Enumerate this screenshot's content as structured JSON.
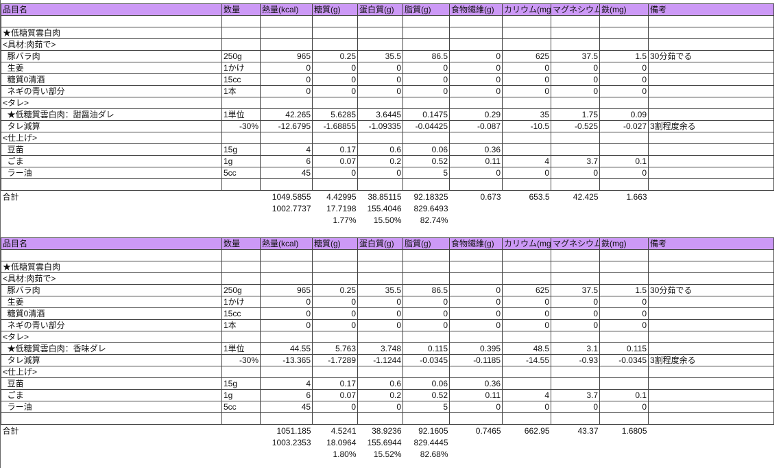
{
  "tables": [
    {
      "header": [
        "品目名",
        "数量",
        "熱量(kcal)",
        "糖質(g)",
        "蛋白質(g)",
        "脂質(g)",
        "食物繊維(g)",
        "カリウム(mg",
        "マグネシウム",
        "鉄(mg)",
        "備考"
      ],
      "rows": [
        [
          null,
          null,
          null,
          null,
          null,
          null,
          null,
          null,
          null,
          null,
          null
        ],
        [
          "★低糖質雲白肉",
          null,
          null,
          null,
          null,
          null,
          null,
          null,
          null,
          null,
          null
        ],
        [
          "<具材:肉茹で>",
          null,
          null,
          null,
          null,
          null,
          null,
          null,
          null,
          null,
          null
        ],
        [
          "  豚バラ肉",
          "250g",
          "965",
          "0.25",
          "35.5",
          "86.5",
          "0",
          "625",
          "37.5",
          "1.5",
          "30分茹でる"
        ],
        [
          "  生姜",
          "1かけ",
          "0",
          "0",
          "0",
          "0",
          "0",
          "0",
          "0",
          "0",
          null
        ],
        [
          "  糖質0清酒",
          "15cc",
          "0",
          "0",
          "0",
          "0",
          "0",
          "0",
          "0",
          "0",
          null
        ],
        [
          "  ネギの青い部分",
          "1本",
          "0",
          "0",
          "0",
          "0",
          "0",
          "0",
          "0",
          "0",
          null
        ],
        [
          "<タレ>",
          null,
          null,
          null,
          null,
          null,
          null,
          null,
          null,
          null,
          null
        ],
        [
          "  ★低糖質雲白肉：甜醤油ダレ",
          "1単位",
          "42.265",
          "5.6285",
          "3.6445",
          "0.1475",
          "0.29",
          "35",
          "1.75",
          "0.09",
          null
        ],
        [
          "  タレ減算",
          "-30%",
          "-12.6795",
          "-1.68855",
          "-1.09335",
          "-0.04425",
          "-0.087",
          "-10.5",
          "-0.525",
          "-0.027",
          "3割程度余る"
        ],
        [
          "<仕上げ>",
          null,
          null,
          null,
          null,
          null,
          null,
          null,
          null,
          null,
          null
        ],
        [
          "  豆苗",
          "15g",
          "4",
          "0.17",
          "0.6",
          "0.06",
          "0.36",
          null,
          null,
          null,
          null
        ],
        [
          "  ごま",
          "1g",
          "6",
          "0.07",
          "0.2",
          "0.52",
          "0.11",
          "4",
          "3.7",
          "0.1",
          null
        ],
        [
          "  ラー油",
          "5cc",
          "45",
          "0",
          "0",
          "5",
          "0",
          "0",
          "0",
          "0",
          null
        ],
        [
          null,
          null,
          null,
          null,
          null,
          null,
          null,
          null,
          null,
          null,
          null
        ]
      ],
      "summary": [
        [
          "合計",
          null,
          "1049.5855",
          "4.42995",
          "38.85115",
          "92.18325",
          "0.673",
          "653.5",
          "42.425",
          "1.663",
          null
        ],
        [
          null,
          null,
          "1002.7737",
          "17.7198",
          "155.4046",
          "829.6493",
          null,
          null,
          null,
          null,
          null
        ],
        [
          null,
          null,
          null,
          "1.77%",
          "15.50%",
          "82.74%",
          null,
          null,
          null,
          null,
          null
        ]
      ]
    },
    {
      "header": [
        "品目名",
        "数量",
        "熱量(kcal)",
        "糖質(g)",
        "蛋白質(g)",
        "脂質(g)",
        "食物繊維(g)",
        "カリウム(mg",
        "マグネシウム",
        "鉄(mg)",
        "備考"
      ],
      "rows": [
        [
          null,
          null,
          null,
          null,
          null,
          null,
          null,
          null,
          null,
          null,
          null
        ],
        [
          "★低糖質雲白肉",
          null,
          null,
          null,
          null,
          null,
          null,
          null,
          null,
          null,
          null
        ],
        [
          "<具材:肉茹で>",
          null,
          null,
          null,
          null,
          null,
          null,
          null,
          null,
          null,
          null
        ],
        [
          "  豚バラ肉",
          "250g",
          "965",
          "0.25",
          "35.5",
          "86.5",
          "0",
          "625",
          "37.5",
          "1.5",
          "30分茹でる"
        ],
        [
          "  生姜",
          "1かけ",
          "0",
          "0",
          "0",
          "0",
          "0",
          "0",
          "0",
          "0",
          null
        ],
        [
          "  糖質0清酒",
          "15cc",
          "0",
          "0",
          "0",
          "0",
          "0",
          "0",
          "0",
          "0",
          null
        ],
        [
          "  ネギの青い部分",
          "1本",
          "0",
          "0",
          "0",
          "0",
          "0",
          "0",
          "0",
          "0",
          null
        ],
        [
          "<タレ>",
          null,
          null,
          null,
          null,
          null,
          null,
          null,
          null,
          null,
          null
        ],
        [
          "  ★低糖質雲白肉：香味ダレ",
          "1単位",
          "44.55",
          "5.763",
          "3.748",
          "0.115",
          "0.395",
          "48.5",
          "3.1",
          "0.115",
          null
        ],
        [
          "  タレ減算",
          "-30%",
          "-13.365",
          "-1.7289",
          "-1.1244",
          "-0.0345",
          "-0.1185",
          "-14.55",
          "-0.93",
          "-0.0345",
          "3割程度余る"
        ],
        [
          "<仕上げ>",
          null,
          null,
          null,
          null,
          null,
          null,
          null,
          null,
          null,
          null
        ],
        [
          "  豆苗",
          "15g",
          "4",
          "0.17",
          "0.6",
          "0.06",
          "0.36",
          null,
          null,
          null,
          null
        ],
        [
          "  ごま",
          "1g",
          "6",
          "0.07",
          "0.2",
          "0.52",
          "0.11",
          "4",
          "3.7",
          "0.1",
          null
        ],
        [
          "  ラー油",
          "5cc",
          "45",
          "0",
          "0",
          "5",
          "0",
          "0",
          "0",
          "0",
          null
        ],
        [
          null,
          null,
          null,
          null,
          null,
          null,
          null,
          null,
          null,
          null,
          null
        ]
      ],
      "summary": [
        [
          "合計",
          null,
          "1051.185",
          "4.5241",
          "38.9236",
          "92.1605",
          "0.7465",
          "662.95",
          "43.37",
          "1.6805",
          null
        ],
        [
          null,
          null,
          "1003.2353",
          "18.0964",
          "155.6944",
          "829.4445",
          null,
          null,
          null,
          null,
          null
        ],
        [
          null,
          null,
          null,
          "1.80%",
          "15.52%",
          "82.68%",
          null,
          null,
          null,
          null,
          null
        ]
      ]
    }
  ]
}
